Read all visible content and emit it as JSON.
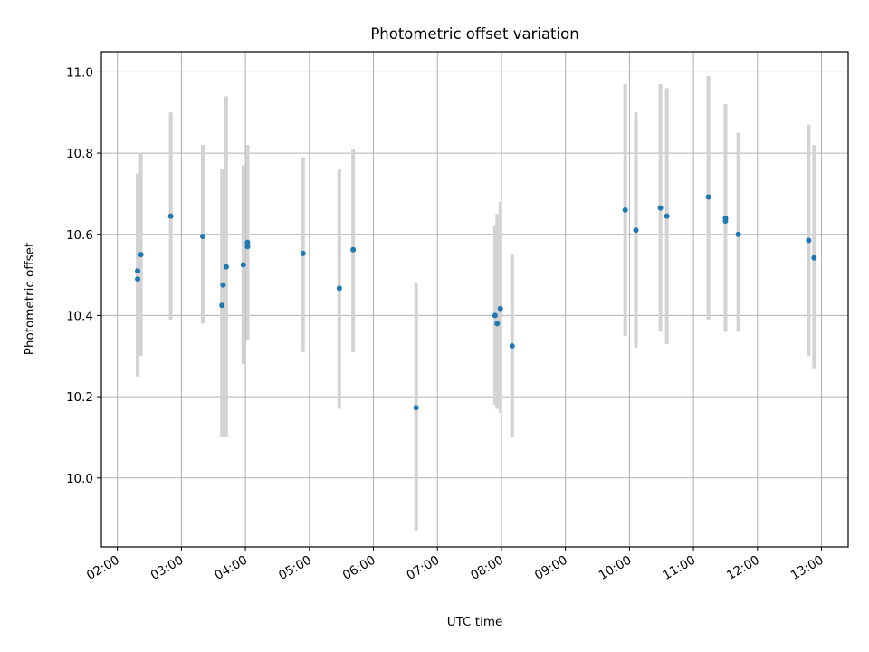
{
  "chart_data": {
    "type": "scatter",
    "title": "Photometric offset variation",
    "xlabel": "UTC time",
    "ylabel": "Photometric offset",
    "x_type": "time",
    "xlim": [
      "01:45",
      "13:25"
    ],
    "ylim": [
      9.83,
      11.05
    ],
    "x_ticks": [
      "02:00",
      "03:00",
      "04:00",
      "05:00",
      "06:00",
      "07:00",
      "08:00",
      "09:00",
      "10:00",
      "11:00",
      "12:00",
      "13:00"
    ],
    "y_ticks": [
      10.0,
      10.2,
      10.4,
      10.6,
      10.8,
      11.0
    ],
    "y_tick_labels": [
      "10.0",
      "10.2",
      "10.4",
      "10.6",
      "10.8",
      "11.0"
    ],
    "grid": true,
    "colors": {
      "point": "#1f77b4",
      "errorbar": "#d3d3d3"
    },
    "points": [
      {
        "t": "02:19",
        "y": 10.51,
        "lo": 10.25,
        "hi": 10.75
      },
      {
        "t": "02:19",
        "y": 10.49,
        "lo": 10.25,
        "hi": 10.74
      },
      {
        "t": "02:22",
        "y": 10.55,
        "lo": 10.3,
        "hi": 10.8
      },
      {
        "t": "02:50",
        "y": 10.645,
        "lo": 10.39,
        "hi": 10.9
      },
      {
        "t": "03:20",
        "y": 10.595,
        "lo": 10.38,
        "hi": 10.82
      },
      {
        "t": "03:38",
        "y": 10.425,
        "lo": 10.1,
        "hi": 10.76
      },
      {
        "t": "03:39",
        "y": 10.475,
        "lo": 10.1,
        "hi": 10.76
      },
      {
        "t": "03:42",
        "y": 10.52,
        "lo": 10.1,
        "hi": 10.94
      },
      {
        "t": "03:58",
        "y": 10.525,
        "lo": 10.28,
        "hi": 10.77
      },
      {
        "t": "04:02",
        "y": 10.58,
        "lo": 10.34,
        "hi": 10.82
      },
      {
        "t": "04:02",
        "y": 10.57,
        "lo": 10.34,
        "hi": 10.82
      },
      {
        "t": "04:54",
        "y": 10.553,
        "lo": 10.31,
        "hi": 10.79
      },
      {
        "t": "05:28",
        "y": 10.467,
        "lo": 10.17,
        "hi": 10.76
      },
      {
        "t": "05:41",
        "y": 10.562,
        "lo": 10.31,
        "hi": 10.81
      },
      {
        "t": "06:40",
        "y": 10.173,
        "lo": 9.87,
        "hi": 10.48
      },
      {
        "t": "07:54",
        "y": 10.4,
        "lo": 10.18,
        "hi": 10.62
      },
      {
        "t": "07:56",
        "y": 10.38,
        "lo": 10.17,
        "hi": 10.65
      },
      {
        "t": "07:59",
        "y": 10.417,
        "lo": 10.16,
        "hi": 10.68
      },
      {
        "t": "08:10",
        "y": 10.325,
        "lo": 10.1,
        "hi": 10.55
      },
      {
        "t": "09:56",
        "y": 10.66,
        "lo": 10.35,
        "hi": 10.97
      },
      {
        "t": "10:06",
        "y": 10.61,
        "lo": 10.32,
        "hi": 10.9
      },
      {
        "t": "10:29",
        "y": 10.665,
        "lo": 10.36,
        "hi": 10.97
      },
      {
        "t": "10:35",
        "y": 10.645,
        "lo": 10.33,
        "hi": 10.96
      },
      {
        "t": "11:14",
        "y": 10.692,
        "lo": 10.39,
        "hi": 10.99
      },
      {
        "t": "11:30",
        "y": 10.64,
        "lo": 10.36,
        "hi": 10.92
      },
      {
        "t": "11:30",
        "y": 10.633,
        "lo": 10.36,
        "hi": 10.92
      },
      {
        "t": "11:42",
        "y": 10.6,
        "lo": 10.36,
        "hi": 10.85
      },
      {
        "t": "12:48",
        "y": 10.585,
        "lo": 10.3,
        "hi": 10.87
      },
      {
        "t": "12:53",
        "y": 10.542,
        "lo": 10.27,
        "hi": 10.82
      }
    ]
  }
}
